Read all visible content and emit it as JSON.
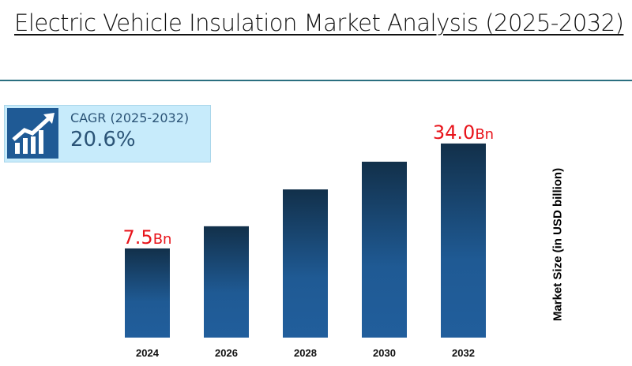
{
  "title": "Electric Vehicle Insulation Market Analysis (2025-2032)",
  "cagr": {
    "label": "CAGR (2025-2032)",
    "value": "20.6%",
    "icon": "growth-chart-arrow-icon"
  },
  "colors": {
    "bar_top": "#12304a",
    "bar_bottom": "#215e9c",
    "data_label": "#e8141b",
    "cagr_box": "#c7ebfb"
  },
  "chart_data": {
    "type": "bar",
    "title": "Electric Vehicle Insulation Market Analysis (2025-2032)",
    "xlabel": "",
    "ylabel": "Market Size (in USD billion)",
    "categories": [
      "2024",
      "2026",
      "2028",
      "2030",
      "2032"
    ],
    "values": [
      7.5,
      13.1,
      22.4,
      29.4,
      34.0
    ],
    "data_labels": [
      {
        "category": "2024",
        "number": "7.5",
        "unit": "Bn"
      },
      {
        "category": "2032",
        "number": "34.0",
        "unit": "Bn"
      }
    ],
    "grid": false,
    "legend": "none"
  }
}
